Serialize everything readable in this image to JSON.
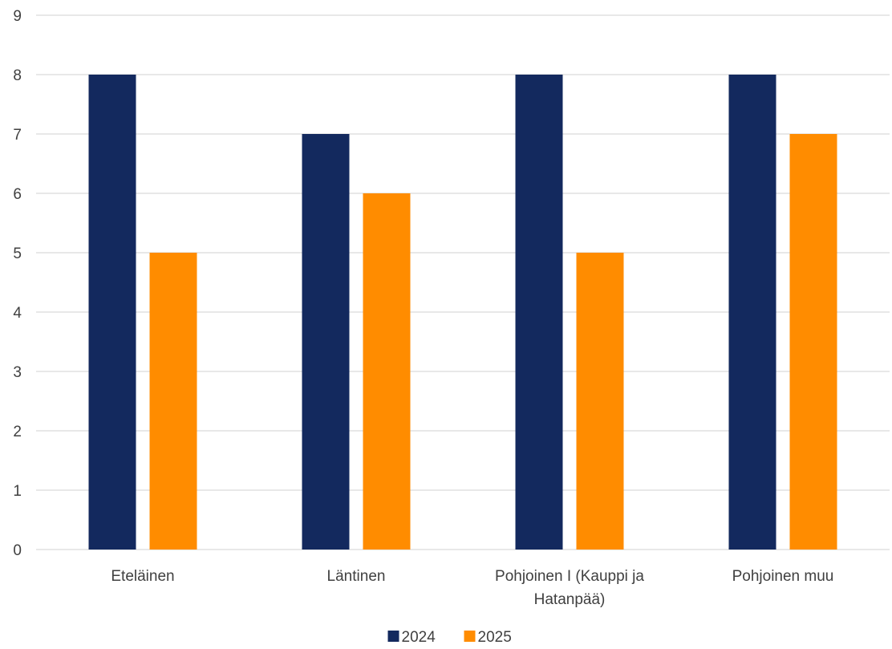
{
  "chart_data": {
    "type": "bar",
    "categories": [
      [
        "Eteläinen"
      ],
      [
        "Läntinen"
      ],
      [
        "Pohjoinen I (Kauppi ja",
        "Hatanpää)"
      ],
      [
        "Pohjoinen  muu"
      ]
    ],
    "series": [
      {
        "name": "2024",
        "color": "#13295e",
        "values": [
          8,
          7,
          8,
          8
        ]
      },
      {
        "name": "2025",
        "color": "#ff8c00",
        "values": [
          5,
          6,
          5,
          7
        ]
      }
    ],
    "ylim": [
      0,
      9
    ],
    "yticks": [
      "0",
      "1",
      "2",
      "3",
      "4",
      "5",
      "6",
      "7",
      "8",
      "9"
    ],
    "grid": true,
    "legend_position": "bottom-center",
    "title": "",
    "xlabel": "",
    "ylabel": ""
  }
}
